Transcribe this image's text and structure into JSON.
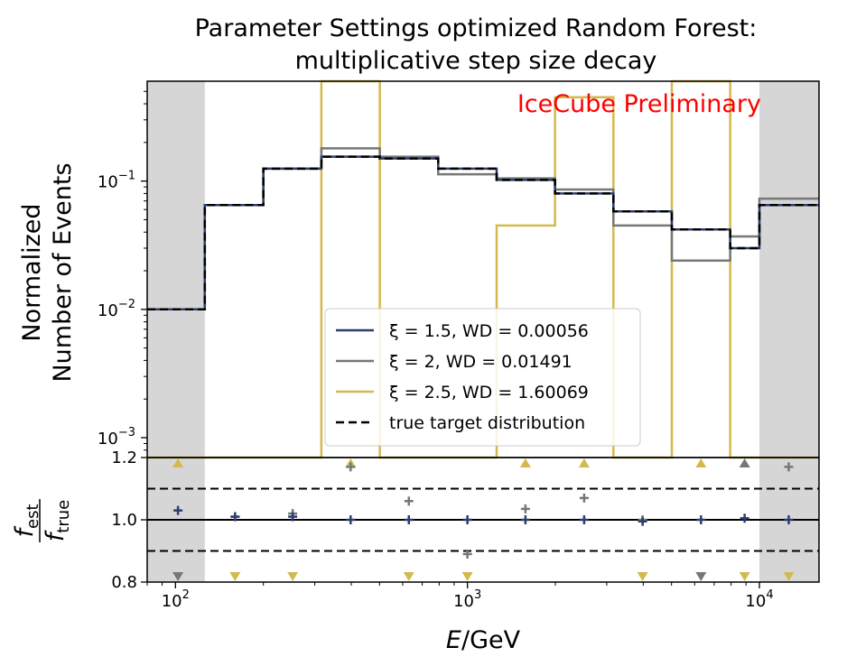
{
  "chart_data": {
    "type": "step-histogram",
    "title_line1": "Parameter Settings optimized Random Forest:",
    "title_line2": "multiplicative step size decay",
    "ylabel_line1": "Normalized",
    "ylabel_line2": "Number of Events",
    "xlabel_italic": "E",
    "xlabel_rest": "/GeV",
    "ratio_ylabel_num": "f",
    "ratio_ylabel_num_sub": "est",
    "ratio_ylabel_den": "f",
    "ratio_ylabel_den_sub": "true",
    "watermark": "IceCube Preliminary",
    "watermark_color": "#ff0000",
    "xscale": "log",
    "yscale": "log",
    "xlim": [
      80,
      16000
    ],
    "ylim": [
      0.0007,
      0.6
    ],
    "ratio_ylim": [
      0.8,
      1.2
    ],
    "shaded_regions": [
      [
        80,
        126
      ],
      [
        10000,
        16000
      ]
    ],
    "bin_edges": [
      80,
      126,
      200,
      316,
      501,
      794,
      1259,
      1995,
      3162,
      5012,
      7943,
      10000,
      16000
    ],
    "x_ticks": [
      {
        "value": 100,
        "base": "10",
        "exp": "2"
      },
      {
        "value": 1000,
        "base": "10",
        "exp": "3"
      },
      {
        "value": 10000,
        "base": "10",
        "exp": "4"
      }
    ],
    "y_ticks": [
      {
        "value": 0.1,
        "base": "10",
        "exp": "−1"
      },
      {
        "value": 0.01,
        "base": "10",
        "exp": "−2"
      },
      {
        "value": 0.001,
        "base": "10",
        "exp": "−3"
      }
    ],
    "ratio_y_ticks": [
      {
        "value": 0.8,
        "label": "0.8"
      },
      {
        "value": 1.0,
        "label": "1.0"
      },
      {
        "value": 1.2,
        "label": "1.2"
      }
    ],
    "ratio_dashed_lines": [
      0.9,
      1.1
    ],
    "ratio_solid_line": 1.0,
    "ratio_x": [
      102,
      160,
      252,
      398,
      630,
      1000,
      1580,
      2510,
      3980,
      6310,
      8900,
      12600
    ],
    "true_target": [
      0.01,
      0.065,
      0.125,
      0.155,
      0.15,
      0.125,
      0.102,
      0.08,
      0.058,
      0.042,
      0.03,
      0.065
    ],
    "series": [
      {
        "name": "ξ = 1.5, WD = 0.00056",
        "color": "#2a3f6e",
        "values": [
          0.01,
          0.065,
          0.125,
          0.155,
          0.15,
          0.125,
          0.102,
          0.08,
          0.058,
          0.042,
          0.03,
          0.065
        ],
        "ratio": [
          1.03,
          1.01,
          1.01,
          1.0,
          1.0,
          1.0,
          1.0,
          1.0,
          0.995,
          1.0,
          1.005,
          1.0
        ]
      },
      {
        "name": "ξ = 2, WD = 0.01491",
        "color": "#777777",
        "values": [
          0.01,
          0.065,
          0.125,
          0.18,
          0.155,
          0.113,
          0.105,
          0.086,
          0.045,
          0.024,
          0.037,
          0.073
        ],
        "ratio": [
          null,
          1.01,
          1.02,
          1.17,
          1.06,
          0.89,
          1.035,
          1.07,
          1.0,
          1.0,
          1.005,
          1.17
        ],
        "ratio_markers": [
          "down",
          null,
          null,
          null,
          null,
          null,
          null,
          null,
          null,
          "down",
          "up",
          null
        ]
      },
      {
        "name": "ξ = 2.5, WD = 1.60069",
        "color": "#d4b94e",
        "values": [
          0.0005,
          0.0005,
          0.0005,
          0.6,
          0.0005,
          0.0005,
          0.045,
          0.45,
          0.0005,
          0.6,
          0.0005,
          0.0005
        ],
        "ratio_markers": [
          "up",
          "down",
          "down",
          "up",
          "down",
          "down",
          "up",
          "up",
          "down",
          "up",
          "down",
          "down"
        ]
      }
    ],
    "legend": {
      "position": "center",
      "true_label": "true target distribution"
    }
  }
}
